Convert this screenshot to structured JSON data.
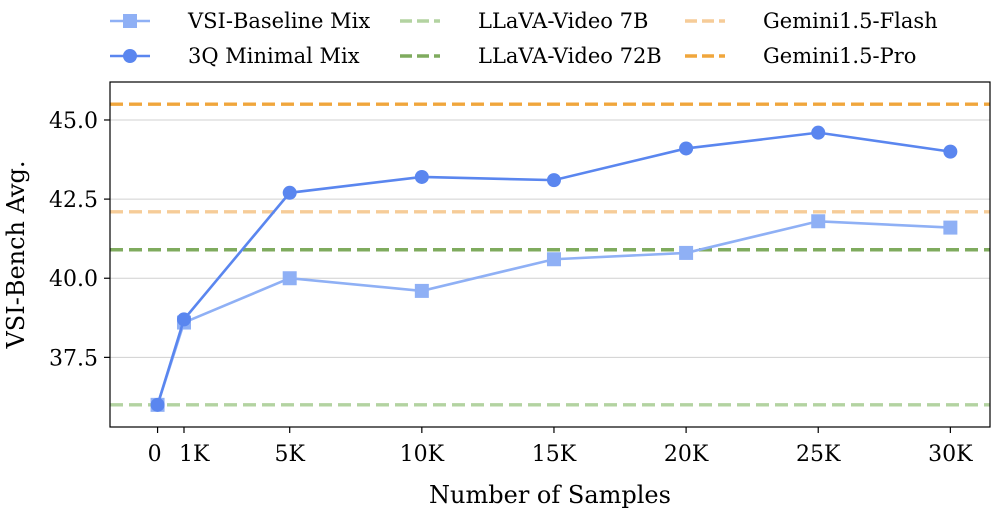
{
  "chart_data": {
    "type": "line",
    "xlabel": "Number of Samples",
    "ylabel": "VSI-Bench Avg.",
    "xlim": [
      -1800,
      31500
    ],
    "ylim": [
      35.3,
      46.2
    ],
    "x": [
      0,
      1000,
      5000,
      10000,
      15000,
      20000,
      25000,
      30000
    ],
    "x_tick_values": [
      0,
      1000,
      5000,
      10000,
      15000,
      20000,
      25000,
      30000
    ],
    "x_tick_labels": [
      "0",
      "1K",
      "5K",
      "10K",
      "15K",
      "20K",
      "25K",
      "30K"
    ],
    "y_ticks": [
      37.5,
      40.0,
      42.5,
      45.0
    ],
    "y_tick_labels": [
      "37.5",
      "40.0",
      "42.5",
      "45.0"
    ],
    "grid": "horizontal",
    "series": [
      {
        "name": "VSI-Baseline Mix",
        "marker": "square",
        "color": "#8fb0f5",
        "values": [
          36.0,
          38.6,
          40.0,
          39.6,
          40.6,
          40.8,
          41.8,
          41.6
        ]
      },
      {
        "name": "3Q Minimal Mix",
        "marker": "circle",
        "color": "#5a86ef",
        "values": [
          36.0,
          38.7,
          42.7,
          43.2,
          43.1,
          44.1,
          44.6,
          44.0
        ]
      }
    ],
    "reference_lines": [
      {
        "name": "LLaVA-Video 7B",
        "value": 36.0,
        "color": "#b3d3a1"
      },
      {
        "name": "LLaVA-Video 72B",
        "value": 40.9,
        "color": "#7fab5e"
      },
      {
        "name": "Gemini1.5-Flash",
        "value": 42.1,
        "color": "#f6cc98"
      },
      {
        "name": "Gemini1.5-Pro",
        "value": 45.5,
        "color": "#f0a63c"
      }
    ],
    "legend": {
      "placement": "top",
      "columns": [
        [
          "VSI-Baseline Mix",
          "3Q Minimal Mix"
        ],
        [
          "LLaVA-Video 7B",
          "LLaVA-Video 72B"
        ],
        [
          "Gemini1.5-Flash",
          "Gemini1.5-Pro"
        ]
      ]
    }
  }
}
